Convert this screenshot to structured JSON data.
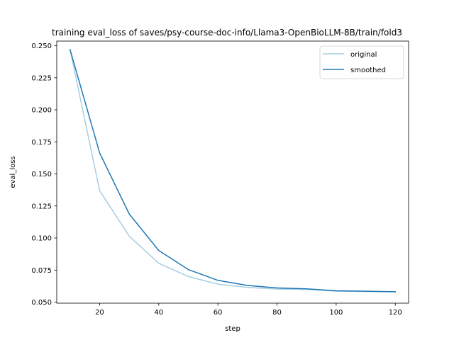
{
  "chart_data": {
    "type": "line",
    "title": "training eval_loss of saves/psy-course-doc-info/Llama3-OpenBioLLM-8B/train/fold3",
    "xlabel": "step",
    "ylabel": "eval_loss",
    "xlim": [
      5.5,
      124.5
    ],
    "ylim": [
      0.0492,
      0.2536
    ],
    "x_ticks": [
      20,
      40,
      60,
      80,
      100,
      120
    ],
    "y_ticks": [
      0.05,
      0.075,
      0.1,
      0.125,
      0.15,
      0.175,
      0.2,
      0.225,
      0.25
    ],
    "x_tick_labels": [
      "20",
      "40",
      "60",
      "80",
      "100",
      "120"
    ],
    "y_tick_labels": [
      "0.050",
      "0.075",
      "0.100",
      "0.125",
      "0.150",
      "0.175",
      "0.200",
      "0.225",
      "0.250"
    ],
    "x": [
      10,
      20,
      30,
      40,
      50,
      60,
      70,
      80,
      90,
      100,
      110,
      120
    ],
    "series": [
      {
        "name": "original",
        "color": "#a6cee3",
        "values": [
          0.247,
          0.137,
          0.1015,
          0.0803,
          0.07,
          0.064,
          0.0615,
          0.0602,
          0.06,
          0.0585,
          0.0583,
          0.058
        ]
      },
      {
        "name": "smoothed",
        "color": "#1f78b4",
        "values": [
          0.247,
          0.1664,
          0.1188,
          0.0903,
          0.0754,
          0.067,
          0.063,
          0.0611,
          0.0604,
          0.0589,
          0.0585,
          0.0581
        ]
      }
    ],
    "legend_position": "upper right",
    "grid": false
  }
}
